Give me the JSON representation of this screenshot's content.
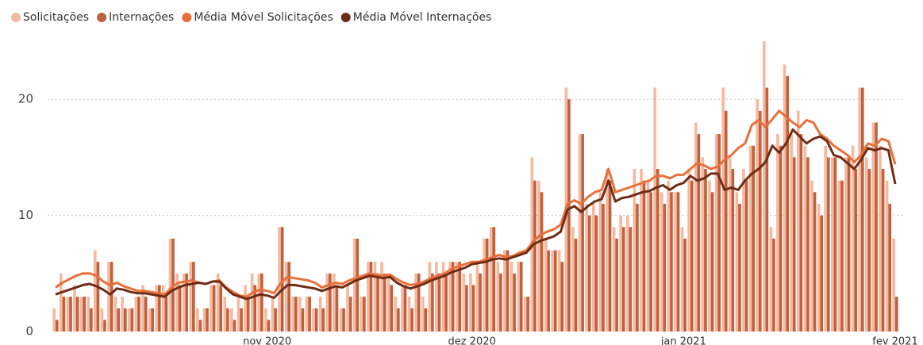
{
  "chart_data": {
    "type": "bar_line",
    "categories": [
      null,
      null,
      null,
      null,
      null,
      null,
      null,
      null,
      null,
      null,
      null,
      null,
      null,
      null,
      null,
      null,
      null,
      null,
      null,
      null,
      null,
      null,
      null,
      null,
      null,
      null,
      null,
      null,
      null,
      null,
      null,
      "nov 2020",
      null,
      null,
      null,
      null,
      null,
      null,
      null,
      null,
      null,
      null,
      null,
      null,
      null,
      null,
      null,
      null,
      null,
      null,
      null,
      null,
      null,
      null,
      null,
      null,
      null,
      null,
      null,
      null,
      null,
      "dez 2020",
      null,
      null,
      null,
      null,
      null,
      null,
      null,
      null,
      null,
      null,
      null,
      null,
      null,
      null,
      null,
      null,
      null,
      null,
      null,
      null,
      null,
      null,
      null,
      null,
      null,
      null,
      null,
      null,
      null,
      null,
      "jan 2021",
      null,
      null,
      null,
      null,
      null,
      null,
      null,
      null,
      null,
      null,
      null,
      null,
      null,
      null,
      null,
      null,
      null,
      null,
      null,
      null,
      null,
      null,
      null,
      null,
      null,
      null,
      null,
      null,
      null,
      null,
      "fev 2021"
    ],
    "series": [
      {
        "name": "Solicitações",
        "color": "#f5b9a0",
        "kind": "bar",
        "values": [
          2,
          5,
          3,
          4,
          3,
          3,
          7,
          2,
          6,
          3,
          3,
          2,
          3,
          4,
          2,
          4,
          4,
          8,
          5,
          5,
          6,
          2,
          2,
          4,
          5,
          3,
          2,
          3,
          4,
          5,
          5,
          2,
          3,
          9,
          6,
          3,
          3,
          3,
          2,
          3,
          5,
          5,
          2,
          4,
          8,
          3,
          6,
          6,
          6,
          5,
          3,
          4,
          3,
          5,
          3,
          6,
          6,
          6,
          6,
          6,
          5,
          5,
          6,
          8,
          9,
          6,
          7,
          6,
          6,
          3,
          15,
          13,
          8,
          7,
          7,
          21,
          9,
          17,
          11,
          11,
          12,
          14,
          9,
          10,
          10,
          14,
          14,
          13,
          21,
          12,
          13,
          12,
          9,
          14,
          18,
          15,
          13,
          17,
          21,
          15,
          12,
          14,
          16,
          20,
          25,
          9,
          17,
          23,
          17,
          19,
          16,
          13,
          11,
          16,
          15,
          13,
          15,
          16,
          21,
          15,
          18,
          16,
          13,
          8
        ]
      },
      {
        "name": "Internações",
        "color": "#c0603c",
        "kind": "bar",
        "values": [
          1,
          3,
          3,
          3,
          3,
          2,
          6,
          1,
          6,
          2,
          2,
          2,
          3,
          3,
          2,
          4,
          3,
          8,
          4,
          5,
          6,
          1,
          2,
          4,
          4,
          2,
          1,
          2,
          3,
          4,
          5,
          1,
          2,
          9,
          6,
          3,
          2,
          3,
          2,
          2,
          5,
          4,
          2,
          3,
          8,
          3,
          6,
          5,
          5,
          4,
          2,
          4,
          2,
          5,
          2,
          5,
          5,
          5,
          6,
          6,
          4,
          4,
          5,
          8,
          9,
          5,
          7,
          5,
          6,
          3,
          13,
          12,
          7,
          7,
          6,
          20,
          8,
          17,
          10,
          10,
          11,
          13,
          8,
          9,
          9,
          11,
          13,
          12,
          14,
          11,
          12,
          12,
          8,
          13,
          17,
          14,
          12,
          17,
          19,
          14,
          11,
          13,
          16,
          19,
          21,
          8,
          16,
          22,
          15,
          17,
          15,
          12,
          10,
          15,
          15,
          13,
          15,
          14,
          21,
          14,
          18,
          14,
          11,
          3
        ]
      },
      {
        "name": "Média Móvel Solicitações",
        "color": "#e8703a",
        "kind": "line",
        "values": [
          3.8,
          4.2,
          4.5,
          4.8,
          5.0,
          5.0,
          4.8,
          4.3,
          4.0,
          4.2,
          3.9,
          3.7,
          3.5,
          3.5,
          3.4,
          3.3,
          3.2,
          3.8,
          4.2,
          4.3,
          4.4,
          4.2,
          4.1,
          4.3,
          4.4,
          3.8,
          3.4,
          3.1,
          3.0,
          3.4,
          3.6,
          3.5,
          3.3,
          4.2,
          4.7,
          4.6,
          4.5,
          4.4,
          4.2,
          3.8,
          4.0,
          4.2,
          4.1,
          4.4,
          4.6,
          4.8,
          5.0,
          4.9,
          4.8,
          4.9,
          4.5,
          4.2,
          4.0,
          4.1,
          4.3,
          4.6,
          4.8,
          5.0,
          5.4,
          5.6,
          5.8,
          6.0,
          6.0,
          6.2,
          6.4,
          6.6,
          6.4,
          6.5,
          6.8,
          7.0,
          7.8,
          8.3,
          8.6,
          8.8,
          9.2,
          11.0,
          11.3,
          11.0,
          11.6,
          12.0,
          12.2,
          14.0,
          12.0,
          12.2,
          12.4,
          12.6,
          12.8,
          13.0,
          13.4,
          13.4,
          13.2,
          13.5,
          13.5,
          14.0,
          14.5,
          14.3,
          14.0,
          14.2,
          14.8,
          15.2,
          15.8,
          16.2,
          17.8,
          18.2,
          17.6,
          18.3,
          19.0,
          18.5,
          18.0,
          17.6,
          18.2,
          18.0,
          17.0,
          16.6,
          16.0,
          15.6,
          15.2,
          14.6,
          15.2,
          16.2,
          16.0,
          16.6,
          16.4,
          14.4
        ]
      },
      {
        "name": "Média Móvel Internações",
        "color": "#6e2c17",
        "kind": "line",
        "values": [
          3.2,
          3.4,
          3.6,
          3.8,
          4.0,
          4.1,
          3.9,
          3.6,
          3.2,
          3.7,
          3.6,
          3.4,
          3.3,
          3.3,
          3.2,
          3.1,
          3.0,
          3.5,
          3.8,
          4.0,
          4.1,
          4.2,
          4.1,
          4.3,
          4.3,
          3.7,
          3.2,
          3.0,
          2.8,
          3.0,
          3.2,
          3.1,
          2.9,
          3.5,
          4.0,
          4.0,
          3.9,
          3.8,
          3.7,
          3.5,
          3.7,
          3.9,
          3.8,
          4.1,
          4.4,
          4.6,
          4.8,
          4.7,
          4.6,
          4.7,
          4.2,
          3.9,
          3.7,
          3.9,
          4.1,
          4.4,
          4.6,
          4.8,
          5.1,
          5.3,
          5.5,
          5.8,
          5.9,
          6.0,
          6.2,
          6.3,
          6.2,
          6.4,
          6.6,
          6.8,
          7.5,
          7.8,
          8.0,
          8.2,
          8.6,
          10.5,
          10.8,
          10.3,
          10.8,
          11.2,
          11.4,
          13.0,
          11.2,
          11.5,
          11.6,
          11.8,
          12.0,
          12.1,
          12.4,
          12.6,
          12.2,
          12.6,
          12.8,
          13.4,
          13.0,
          13.2,
          13.6,
          13.6,
          12.2,
          12.4,
          12.2,
          13.0,
          13.6,
          14.0,
          14.6,
          16.0,
          15.4,
          16.2,
          17.4,
          16.8,
          16.2,
          16.6,
          16.8,
          16.4,
          15.2,
          15.0,
          14.5,
          14.0,
          14.8,
          15.8,
          15.6,
          15.8,
          15.6,
          12.7
        ]
      }
    ],
    "ylim": [
      0,
      25
    ],
    "yticks": [
      0,
      10,
      20
    ],
    "grid": true,
    "legend": "top-left"
  }
}
